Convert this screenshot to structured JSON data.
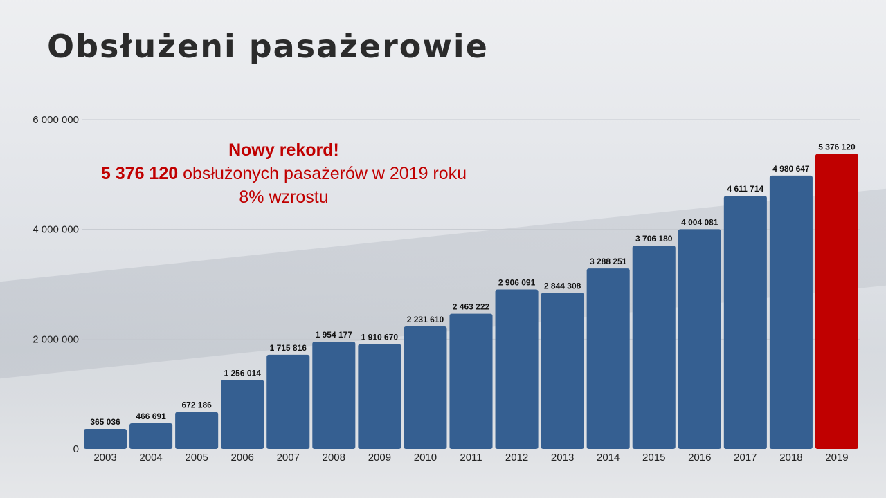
{
  "title": "Obsłużeni pasażerowie",
  "annotation": {
    "headline": "Nowy rekord!",
    "record_value": "5 376 120",
    "record_text": " obsłużonych pasażerów w 2019 roku",
    "growth": "8% wzrostu"
  },
  "colors": {
    "bar": "#355f91",
    "highlight": "#c00000",
    "title": "#2b2b2b"
  },
  "chart_data": {
    "type": "bar",
    "title": "Obsłużeni pasażerowie",
    "xlabel": "",
    "ylabel": "",
    "categories": [
      "2003",
      "2004",
      "2005",
      "2006",
      "2007",
      "2008",
      "2009",
      "2010",
      "2011",
      "2012",
      "2013",
      "2014",
      "2015",
      "2016",
      "2017",
      "2018",
      "2019"
    ],
    "values": [
      365036,
      466691,
      672186,
      1256014,
      1715816,
      1954177,
      1910670,
      2231610,
      2463222,
      2906091,
      2844308,
      3288251,
      3706180,
      4004081,
      4611714,
      4980647,
      5376120
    ],
    "value_labels": [
      "365 036",
      "466 691",
      "672 186",
      "1 256 014",
      "1 715 816",
      "1 954 177",
      "1 910 670",
      "2 231 610",
      "2 463 222",
      "2 906 091",
      "2 844 308",
      "3 288 251",
      "3 706 180",
      "4 004 081",
      "4 611 714",
      "4 980 647",
      "5 376 120"
    ],
    "highlight_category": "2019",
    "ylim": [
      0,
      6000000
    ],
    "yticks": [
      0,
      2000000,
      4000000,
      6000000
    ],
    "ytick_labels": [
      "0",
      "2 000 000",
      "4 000 000",
      "6 000 000"
    ],
    "grid": true,
    "legend": "none"
  }
}
